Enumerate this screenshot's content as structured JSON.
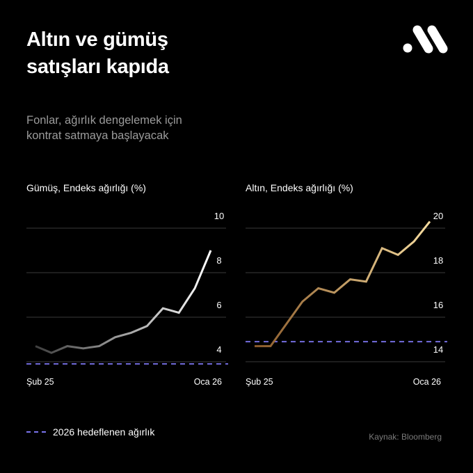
{
  "header": {
    "title_line1": "Altın ve gümüş",
    "title_line2": "satışları kapıda",
    "subtitle_line1": "Fonlar, ağırlık dengelemek için",
    "subtitle_line2": "kontrat satmaya başlayacak",
    "logo_icon": "brand-logo"
  },
  "legend": {
    "label": "2026 hedeflenen ağırlık",
    "color": "#7b74ee"
  },
  "source": "Kaynak: Bloomberg",
  "chart_data": [
    {
      "type": "line",
      "title": "Gümüş, Endeks ağırlığı (%)",
      "x_labels": [
        "Şub 25",
        "Oca 26"
      ],
      "y_ticks": [
        4,
        6,
        8,
        10
      ],
      "ylim": [
        4,
        10
      ],
      "grid": true,
      "values": [
        4.7,
        4.4,
        4.7,
        4.6,
        4.7,
        5.1,
        5.3,
        5.6,
        6.4,
        6.2,
        7.3,
        9.0
      ],
      "target": 3.9,
      "colors": [
        "#3f3f3f",
        "#ffffff"
      ]
    },
    {
      "type": "line",
      "title": "Altın, Endeks ağırlığı (%)",
      "x_labels": [
        "Şub 25",
        "Oca 26"
      ],
      "y_ticks": [
        14,
        16,
        18,
        20
      ],
      "ylim": [
        14,
        20
      ],
      "grid": true,
      "values": [
        14.7,
        14.7,
        15.7,
        16.7,
        17.3,
        17.1,
        17.7,
        17.6,
        19.1,
        18.8,
        19.4,
        20.3
      ],
      "target": 14.9,
      "colors": [
        "#8a5a2a",
        "#f6dc9f"
      ]
    }
  ]
}
